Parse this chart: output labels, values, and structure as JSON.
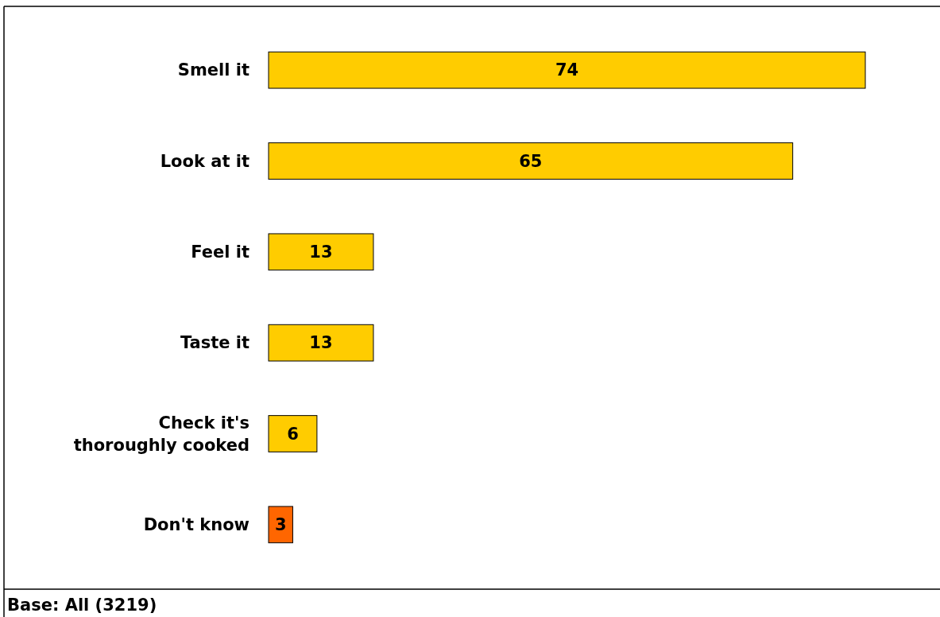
{
  "chart_data": {
    "type": "bar",
    "orientation": "horizontal",
    "categories": [
      "Smell it",
      "Look at it",
      "Feel it",
      "Taste it",
      "Check it's thoroughly cooked",
      "Don't know"
    ],
    "values": [
      74,
      65,
      13,
      13,
      6,
      3
    ],
    "colors": [
      "#ffcc00",
      "#ffcc00",
      "#ffcc00",
      "#ffcc00",
      "#ffcc00",
      "#ff6600"
    ],
    "data_labels": true,
    "annotations": [
      "Base: All (3219)"
    ]
  }
}
